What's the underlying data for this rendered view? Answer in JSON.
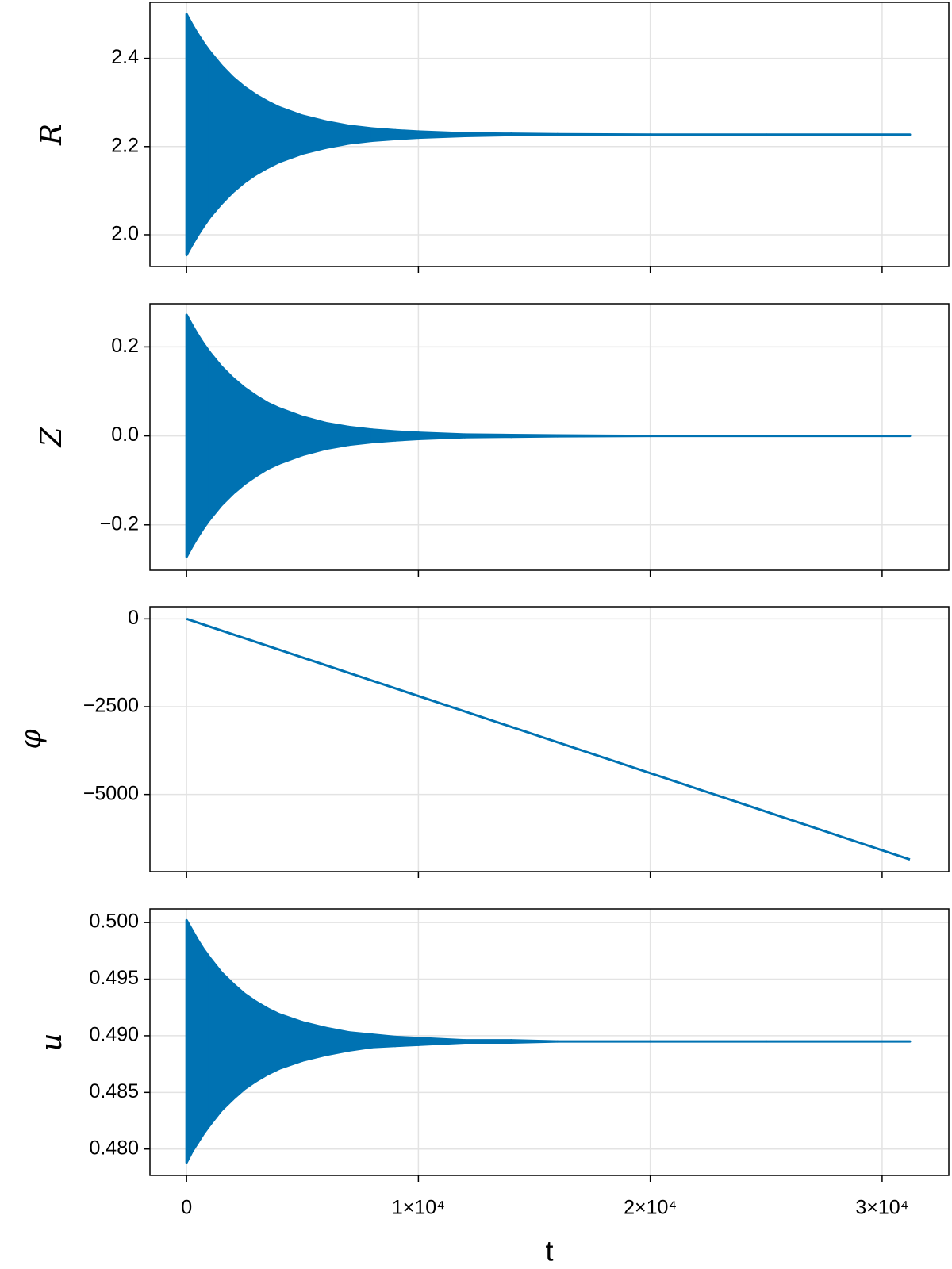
{
  "chart_data": [
    {
      "type": "band",
      "ylabel": "R",
      "color": "#0072b2",
      "grid": true,
      "x": [
        0,
        250,
        500,
        750,
        1000,
        1500,
        2000,
        2500,
        3000,
        3500,
        4000,
        5000,
        6000,
        7000,
        8000,
        9000,
        10000,
        12000,
        14000,
        16000,
        20000,
        25000,
        31200
      ],
      "upper": [
        2.5,
        2.476,
        2.454,
        2.434,
        2.416,
        2.384,
        2.357,
        2.335,
        2.317,
        2.302,
        2.289,
        2.27,
        2.257,
        2.247,
        2.241,
        2.237,
        2.234,
        2.23,
        2.229,
        2.228,
        2.227,
        2.227,
        2.227
      ],
      "lower": [
        1.954,
        1.978,
        2.0,
        2.02,
        2.039,
        2.07,
        2.097,
        2.119,
        2.137,
        2.152,
        2.165,
        2.184,
        2.197,
        2.207,
        2.213,
        2.217,
        2.22,
        2.224,
        2.226,
        2.226,
        2.227,
        2.227,
        2.227
      ],
      "xlim": [
        -1579,
        32877
      ],
      "xticks": [
        0,
        10000,
        20000,
        30000
      ],
      "ylim": [
        1.928,
        2.527
      ],
      "yticks": [
        {
          "value": 2,
          "label": "2.0"
        },
        2.2,
        2.4
      ]
    },
    {
      "type": "band",
      "ylabel": "Z",
      "color": "#0072b2",
      "grid": true,
      "x": [
        0,
        250,
        500,
        750,
        1000,
        1500,
        2000,
        2500,
        3000,
        3500,
        4000,
        5000,
        6000,
        7000,
        8000,
        9000,
        10000,
        12000,
        14000,
        16000,
        20000,
        25000,
        31200
      ],
      "upper": [
        0.272,
        0.248,
        0.226,
        0.206,
        0.188,
        0.156,
        0.13,
        0.108,
        0.09,
        0.074,
        0.062,
        0.043,
        0.029,
        0.02,
        0.014,
        0.01,
        0.007,
        0.003,
        0.002,
        0.001,
        0,
        0,
        0
      ],
      "lower": [
        -0.272,
        -0.248,
        -0.226,
        -0.206,
        -0.188,
        -0.156,
        -0.13,
        -0.108,
        -0.09,
        -0.074,
        -0.062,
        -0.043,
        -0.029,
        -0.02,
        -0.014,
        -0.01,
        -0.007,
        -0.003,
        -0.002,
        -0.001,
        0,
        0,
        0
      ],
      "xlim": [
        -1579,
        32877
      ],
      "xticks": [
        0,
        10000,
        20000,
        30000
      ],
      "ylim": [
        -0.302,
        0.297
      ],
      "yticks": [
        {
          "value": -0.2,
          "label": "−0.2"
        },
        {
          "value": 0,
          "label": "0.0"
        },
        0.2
      ]
    },
    {
      "type": "line",
      "ylabel": "φ",
      "color": "#0072b2",
      "grid": true,
      "x": [
        0,
        31200
      ],
      "values": [
        0,
        -6852
      ],
      "xlim": [
        -1579,
        32877
      ],
      "xticks": [
        0,
        10000,
        20000,
        30000
      ],
      "ylim": [
        -7199,
        347
      ],
      "yticks": [
        {
          "value": -5000,
          "label": "−5000"
        },
        {
          "value": -2500,
          "label": "−2500"
        },
        0
      ]
    },
    {
      "type": "band",
      "ylabel": "u",
      "xlabel": "t",
      "color": "#0072b2",
      "grid": true,
      "x": [
        0,
        250,
        500,
        750,
        1000,
        1500,
        2000,
        2500,
        3000,
        3500,
        4000,
        5000,
        6000,
        7000,
        8000,
        9000,
        10000,
        12000,
        14000,
        16000,
        20000,
        25000,
        31200
      ],
      "upper": [
        0.5002,
        0.4993,
        0.4984,
        0.4976,
        0.4969,
        0.4956,
        0.4946,
        0.4937,
        0.493,
        0.4924,
        0.4919,
        0.4912,
        0.4907,
        0.4903,
        0.4901,
        0.4899,
        0.4898,
        0.4896,
        0.4896,
        0.4895,
        0.4895,
        0.4895,
        0.4895
      ],
      "lower": [
        0.4788,
        0.4798,
        0.4806,
        0.4814,
        0.4821,
        0.4834,
        0.4844,
        0.4853,
        0.486,
        0.4866,
        0.4871,
        0.4878,
        0.4883,
        0.4887,
        0.489,
        0.4891,
        0.4892,
        0.4894,
        0.4894,
        0.4895,
        0.4895,
        0.4895,
        0.4895
      ],
      "xlim": [
        -1579,
        32877
      ],
      "xticks": [
        0,
        {
          "value": 10000,
          "label": "1×10⁴"
        },
        {
          "value": 20000,
          "label": "2×10⁴"
        },
        {
          "value": 30000,
          "label": "3×10⁴"
        }
      ],
      "ylim": [
        0.47767,
        0.5012
      ],
      "yticks": [
        {
          "value": 0.48,
          "label": "0.480"
        },
        0.485,
        {
          "value": 0.49,
          "label": "0.490"
        },
        0.495,
        {
          "value": 0.5,
          "label": "0.500"
        }
      ]
    }
  ]
}
